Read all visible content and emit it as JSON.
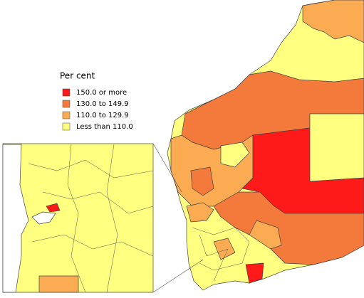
{
  "legend": {
    "title": "Per cent",
    "items": [
      {
        "label": "150.0 or more",
        "color": "#ff1a1a"
      },
      {
        "label": "130.0 to 149.9",
        "color": "#f47a3c"
      },
      {
        "label": "110.0 to 129.9",
        "color": "#fbab52"
      },
      {
        "label": "Less than 110.0",
        "color": "#ffff80"
      }
    ]
  }
}
